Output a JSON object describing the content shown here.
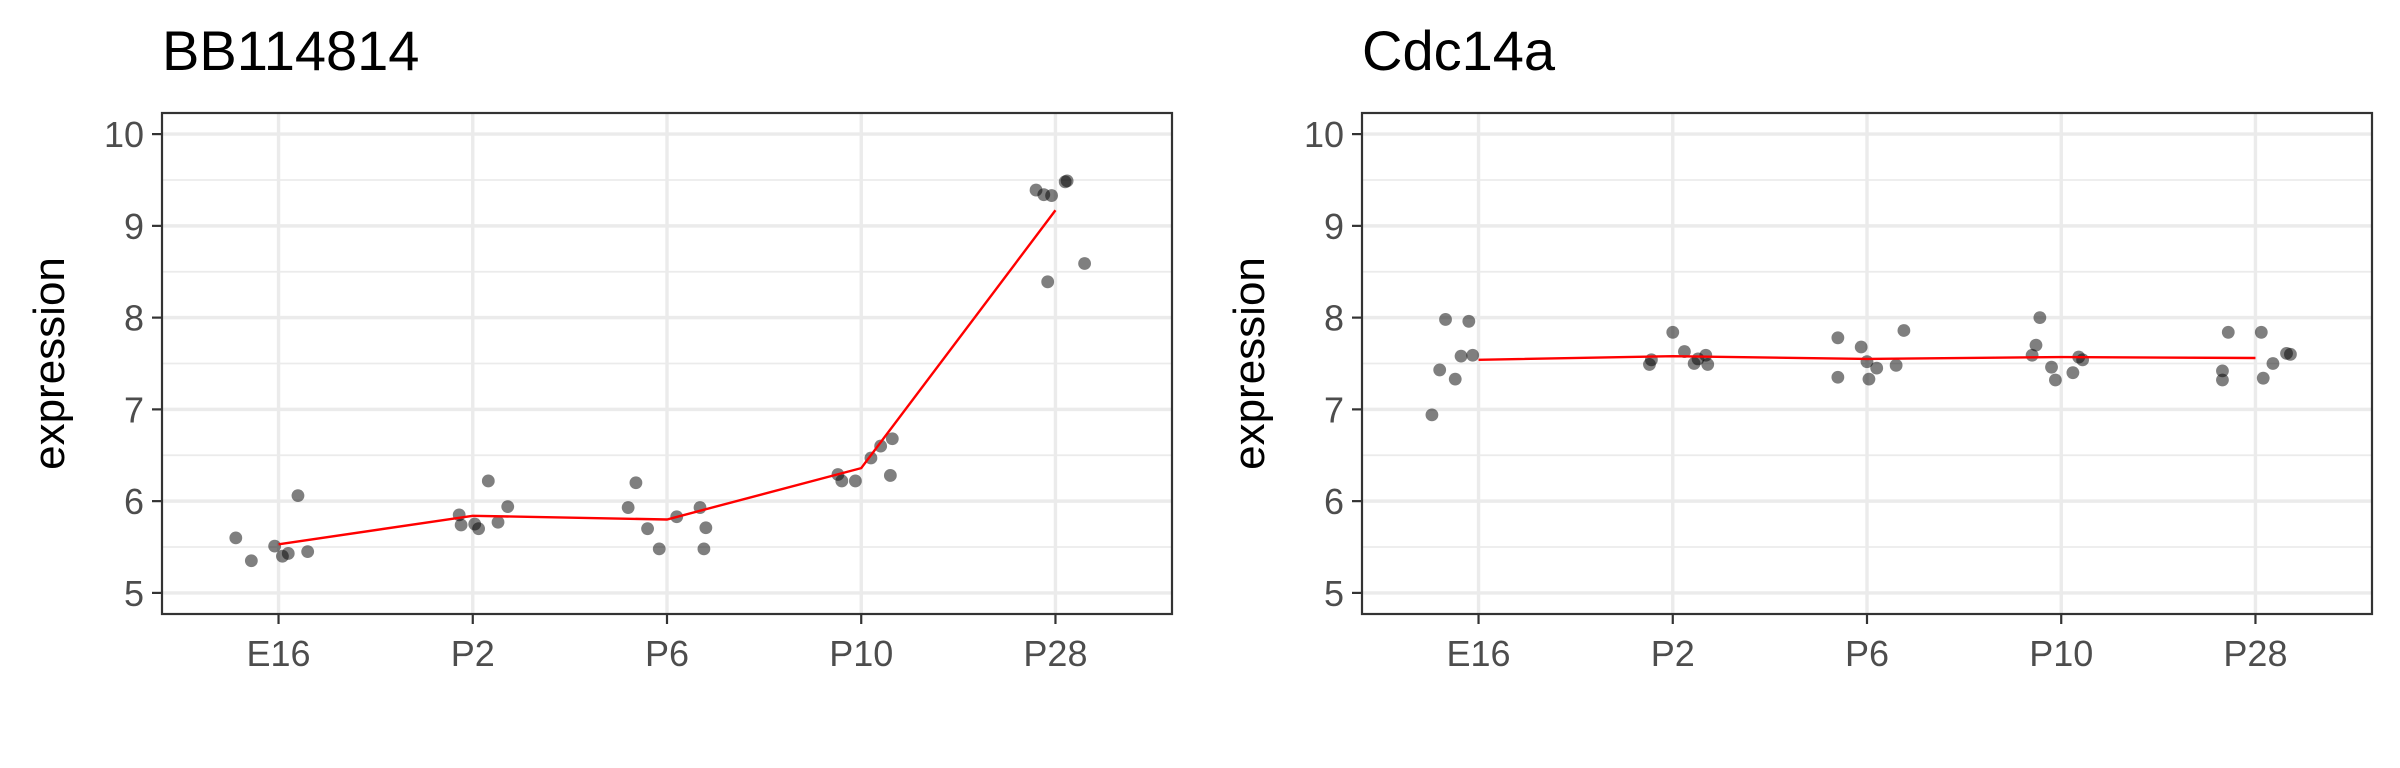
{
  "colors": {
    "trend_line": "#ff0000",
    "points": "#000000",
    "grid": "#ebebeb",
    "panel_border": "#333333"
  },
  "chart_data": [
    {
      "type": "scatter",
      "title": "BB114814",
      "xlabel": "",
      "ylabel": "expression",
      "categories": [
        "E16",
        "P2",
        "P6",
        "P10",
        "P28"
      ],
      "ylim": [
        4.77,
        10.23
      ],
      "yticks": [
        "5",
        "6",
        "7",
        "8",
        "9",
        "10"
      ],
      "grid": true,
      "points": [
        {
          "x": 0.78,
          "y": 5.6
        },
        {
          "x": 0.86,
          "y": 5.35
        },
        {
          "x": 0.98,
          "y": 5.51
        },
        {
          "x": 1.02,
          "y": 5.4
        },
        {
          "x": 1.05,
          "y": 5.43
        },
        {
          "x": 1.1,
          "y": 6.06
        },
        {
          "x": 1.15,
          "y": 5.45
        },
        {
          "x": 1.93,
          "y": 5.85
        },
        {
          "x": 1.94,
          "y": 5.74
        },
        {
          "x": 2.01,
          "y": 5.75
        },
        {
          "x": 2.03,
          "y": 5.7
        },
        {
          "x": 2.08,
          "y": 6.22
        },
        {
          "x": 2.13,
          "y": 5.77
        },
        {
          "x": 2.18,
          "y": 5.94
        },
        {
          "x": 2.8,
          "y": 5.93
        },
        {
          "x": 2.84,
          "y": 6.2
        },
        {
          "x": 2.9,
          "y": 5.7
        },
        {
          "x": 2.96,
          "y": 5.48
        },
        {
          "x": 3.05,
          "y": 5.83
        },
        {
          "x": 3.17,
          "y": 5.93
        },
        {
          "x": 3.2,
          "y": 5.71
        },
        {
          "x": 3.19,
          "y": 5.48
        },
        {
          "x": 3.88,
          "y": 6.29
        },
        {
          "x": 3.9,
          "y": 6.22
        },
        {
          "x": 3.97,
          "y": 6.22
        },
        {
          "x": 4.05,
          "y": 6.47
        },
        {
          "x": 4.1,
          "y": 6.6
        },
        {
          "x": 4.15,
          "y": 6.28
        },
        {
          "x": 4.16,
          "y": 6.68
        },
        {
          "x": 4.9,
          "y": 9.39
        },
        {
          "x": 4.94,
          "y": 9.34
        },
        {
          "x": 4.96,
          "y": 8.39
        },
        {
          "x": 4.98,
          "y": 9.33
        },
        {
          "x": 5.05,
          "y": 9.48
        },
        {
          "x": 5.06,
          "y": 9.49
        },
        {
          "x": 5.15,
          "y": 8.59
        }
      ],
      "trend": {
        "color": "#ff0000",
        "values": [
          5.53,
          5.84,
          5.8,
          6.36,
          9.17
        ]
      }
    },
    {
      "type": "scatter",
      "title": "Cdc14a",
      "xlabel": "",
      "ylabel": "expression",
      "categories": [
        "E16",
        "P2",
        "P6",
        "P10",
        "P28"
      ],
      "ylim": [
        4.77,
        10.23
      ],
      "yticks": [
        "5",
        "6",
        "7",
        "8",
        "9",
        "10"
      ],
      "grid": true,
      "points": [
        {
          "x": 0.76,
          "y": 6.94
        },
        {
          "x": 0.8,
          "y": 7.43
        },
        {
          "x": 0.83,
          "y": 7.98
        },
        {
          "x": 0.88,
          "y": 7.33
        },
        {
          "x": 0.91,
          "y": 7.58
        },
        {
          "x": 0.95,
          "y": 7.96
        },
        {
          "x": 0.97,
          "y": 7.59
        },
        {
          "x": 1.88,
          "y": 7.49
        },
        {
          "x": 1.89,
          "y": 7.54
        },
        {
          "x": 2.0,
          "y": 7.84
        },
        {
          "x": 2.06,
          "y": 7.63
        },
        {
          "x": 2.11,
          "y": 7.5
        },
        {
          "x": 2.13,
          "y": 7.55
        },
        {
          "x": 2.17,
          "y": 7.59
        },
        {
          "x": 2.18,
          "y": 7.49
        },
        {
          "x": 2.85,
          "y": 7.78
        },
        {
          "x": 2.85,
          "y": 7.35
        },
        {
          "x": 2.97,
          "y": 7.68
        },
        {
          "x": 3.0,
          "y": 7.52
        },
        {
          "x": 3.01,
          "y": 7.33
        },
        {
          "x": 3.05,
          "y": 7.45
        },
        {
          "x": 3.15,
          "y": 7.48
        },
        {
          "x": 3.19,
          "y": 7.86
        },
        {
          "x": 3.85,
          "y": 7.59
        },
        {
          "x": 3.87,
          "y": 7.7
        },
        {
          "x": 3.89,
          "y": 8.0
        },
        {
          "x": 3.95,
          "y": 7.46
        },
        {
          "x": 3.97,
          "y": 7.32
        },
        {
          "x": 4.06,
          "y": 7.4
        },
        {
          "x": 4.09,
          "y": 7.57
        },
        {
          "x": 4.11,
          "y": 7.54
        },
        {
          "x": 4.83,
          "y": 7.42
        },
        {
          "x": 4.83,
          "y": 7.32
        },
        {
          "x": 4.86,
          "y": 7.84
        },
        {
          "x": 5.03,
          "y": 7.84
        },
        {
          "x": 5.04,
          "y": 7.34
        },
        {
          "x": 5.09,
          "y": 7.5
        },
        {
          "x": 5.16,
          "y": 7.61
        },
        {
          "x": 5.18,
          "y": 7.6
        }
      ],
      "trend": {
        "color": "#ff0000",
        "values": [
          7.54,
          7.58,
          7.55,
          7.57,
          7.56
        ]
      }
    }
  ]
}
